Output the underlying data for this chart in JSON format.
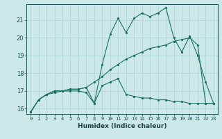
{
  "xlabel": "Humidex (Indice chaleur)",
  "bg_color": "#cce8e8",
  "line_color": "#1a7060",
  "grid_color": "#b0d8d8",
  "xlim": [
    -0.5,
    23.5
  ],
  "ylim": [
    15.7,
    21.9
  ],
  "yticks": [
    16,
    17,
    18,
    19,
    20,
    21
  ],
  "xticks": [
    0,
    1,
    2,
    3,
    4,
    5,
    6,
    7,
    8,
    9,
    10,
    11,
    12,
    13,
    14,
    15,
    16,
    17,
    18,
    19,
    20,
    21,
    22,
    23
  ],
  "xtick_labels": [
    "0",
    "1",
    "2",
    "3",
    "4",
    "5",
    "6",
    "7",
    "8",
    "9",
    "10",
    "11",
    "12",
    "13",
    "14",
    "15",
    "16",
    "17",
    "18",
    "19",
    "20",
    "21",
    "22",
    "23"
  ],
  "line1_x": [
    0,
    1,
    2,
    3,
    4,
    5,
    6,
    7,
    8,
    9,
    10,
    11,
    12,
    13,
    14,
    15,
    16,
    17,
    18,
    19,
    20,
    21,
    22,
    23
  ],
  "line1_y": [
    15.8,
    16.5,
    16.8,
    16.9,
    17.0,
    17.0,
    17.0,
    16.9,
    16.3,
    18.5,
    20.2,
    21.1,
    20.3,
    21.1,
    21.4,
    21.2,
    21.4,
    21.7,
    20.0,
    19.2,
    20.1,
    19.0,
    17.5,
    16.3
  ],
  "line2_x": [
    0,
    1,
    2,
    3,
    4,
    5,
    6,
    7,
    8,
    9,
    10,
    11,
    12,
    13,
    14,
    15,
    16,
    17,
    18,
    19,
    20,
    21,
    22,
    23
  ],
  "line2_y": [
    15.8,
    16.5,
    16.8,
    17.0,
    17.0,
    17.1,
    17.1,
    17.2,
    17.5,
    17.8,
    18.2,
    18.5,
    18.8,
    19.0,
    19.2,
    19.4,
    19.5,
    19.6,
    19.8,
    19.9,
    20.0,
    19.6,
    16.3,
    16.3
  ],
  "line3_x": [
    0,
    1,
    2,
    3,
    4,
    5,
    6,
    7,
    8,
    9,
    10,
    11,
    12,
    13,
    14,
    15,
    16,
    17,
    18,
    19,
    20,
    21,
    22,
    23
  ],
  "line3_y": [
    15.8,
    16.5,
    16.8,
    17.0,
    17.0,
    17.1,
    17.1,
    17.2,
    16.3,
    17.3,
    17.5,
    17.7,
    16.8,
    16.7,
    16.6,
    16.6,
    16.5,
    16.5,
    16.4,
    16.4,
    16.3,
    16.3,
    16.3,
    16.3
  ]
}
